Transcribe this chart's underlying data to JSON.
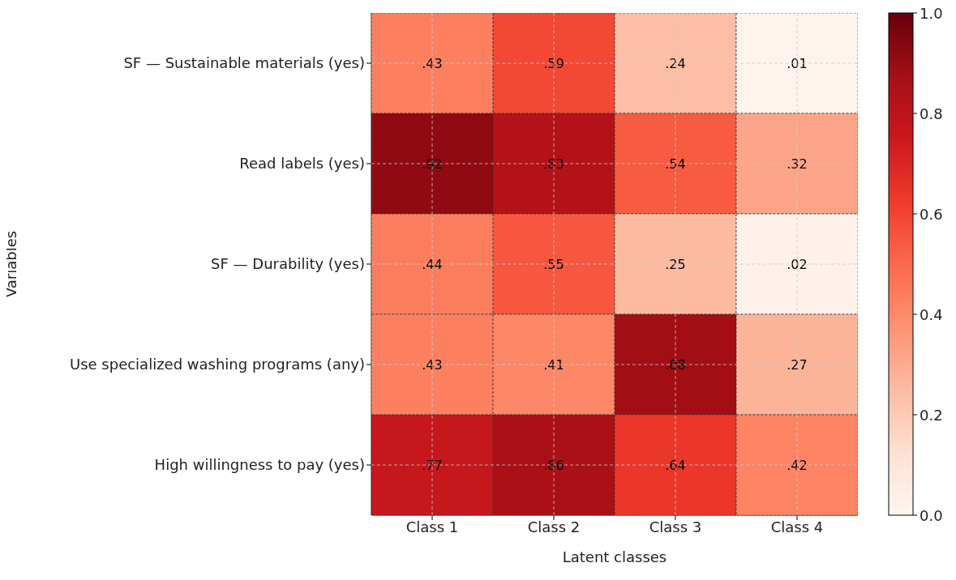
{
  "chart_data": {
    "type": "heatmap",
    "xlabel": "Latent classes",
    "ylabel": "Variables",
    "categories": [
      "Class 1",
      "Class 2",
      "Class 3",
      "Class 4"
    ],
    "y_categories": [
      "SF — Sustainable materials (yes)",
      "Read labels (yes)",
      "SF — Durability (yes)",
      "Use specialized washing programs (any)",
      "High willingness to pay (yes)"
    ],
    "cells": [
      [
        0.43,
        0.59,
        0.24,
        0.01
      ],
      [
        0.92,
        0.83,
        0.54,
        0.32
      ],
      [
        0.44,
        0.55,
        0.25,
        0.02
      ],
      [
        0.43,
        0.41,
        0.88,
        0.27
      ],
      [
        0.77,
        0.86,
        0.64,
        0.42
      ]
    ],
    "cell_labels": [
      [
        ".43",
        ".59",
        ".24",
        ".01"
      ],
      [
        ".92",
        ".83",
        ".54",
        ".32"
      ],
      [
        ".44",
        ".55",
        ".25",
        ".02"
      ],
      [
        ".43",
        ".41",
        ".88",
        ".27"
      ],
      [
        ".77",
        ".86",
        ".64",
        ".42"
      ]
    ],
    "clim": [
      0,
      1
    ],
    "cticks": [
      {
        "value": 0,
        "label": "0.0"
      },
      {
        "value": 0.2,
        "label": "0.2"
      },
      {
        "value": 0.4,
        "label": "0.4"
      },
      {
        "value": 0.6,
        "label": "0.6"
      },
      {
        "value": 0.8,
        "label": "0.8"
      },
      {
        "value": 1,
        "label": "1.0"
      }
    ],
    "grid": true
  }
}
